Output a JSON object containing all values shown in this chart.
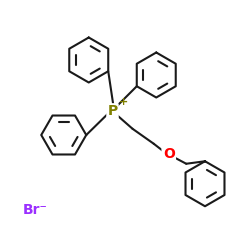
{
  "bg_color": "#ffffff",
  "P_color": "#808000",
  "O_color": "#ff0000",
  "Br_color": "#9b30ff",
  "bond_color": "#1a1a1a",
  "bond_lw": 1.5,
  "ring_lw": 1.5,
  "font_size_P": 10,
  "font_size_plus": 8,
  "font_size_O": 10,
  "font_size_Br": 10,
  "P_label": "P",
  "plus_label": "+",
  "O_label": "O",
  "Br_label": "Br⁻",
  "figsize": [
    2.5,
    2.5
  ],
  "dpi": 100,
  "xlim": [
    0,
    10
  ],
  "ylim": [
    0,
    10
  ]
}
